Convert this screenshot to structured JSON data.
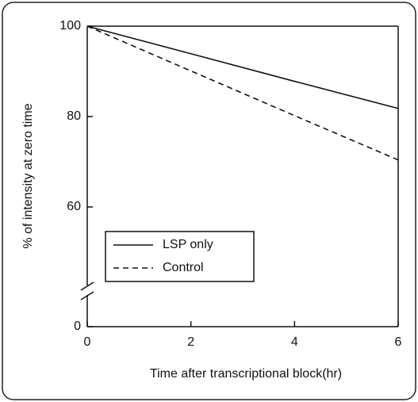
{
  "chart_data": {
    "type": "line",
    "xlabel": "Time after transcriptional block(hr)",
    "ylabel": "% of intensity at zero time",
    "x": [
      0,
      2,
      4,
      6
    ],
    "series": [
      {
        "name": "LSP only",
        "color": "#111111",
        "dash": "solid",
        "values": [
          100,
          93.9,
          87.8,
          81.8
        ]
      },
      {
        "name": "Control",
        "color": "#111111",
        "dash": "dashed",
        "values": [
          100,
          90.1,
          80.2,
          70.4
        ]
      }
    ],
    "xlim": [
      0,
      6
    ],
    "xticks": [
      0,
      2,
      4,
      6
    ],
    "ylim": [
      0,
      100
    ],
    "yticks": [
      0,
      60,
      80,
      100
    ],
    "axis_break": true,
    "legend": "lower left"
  }
}
